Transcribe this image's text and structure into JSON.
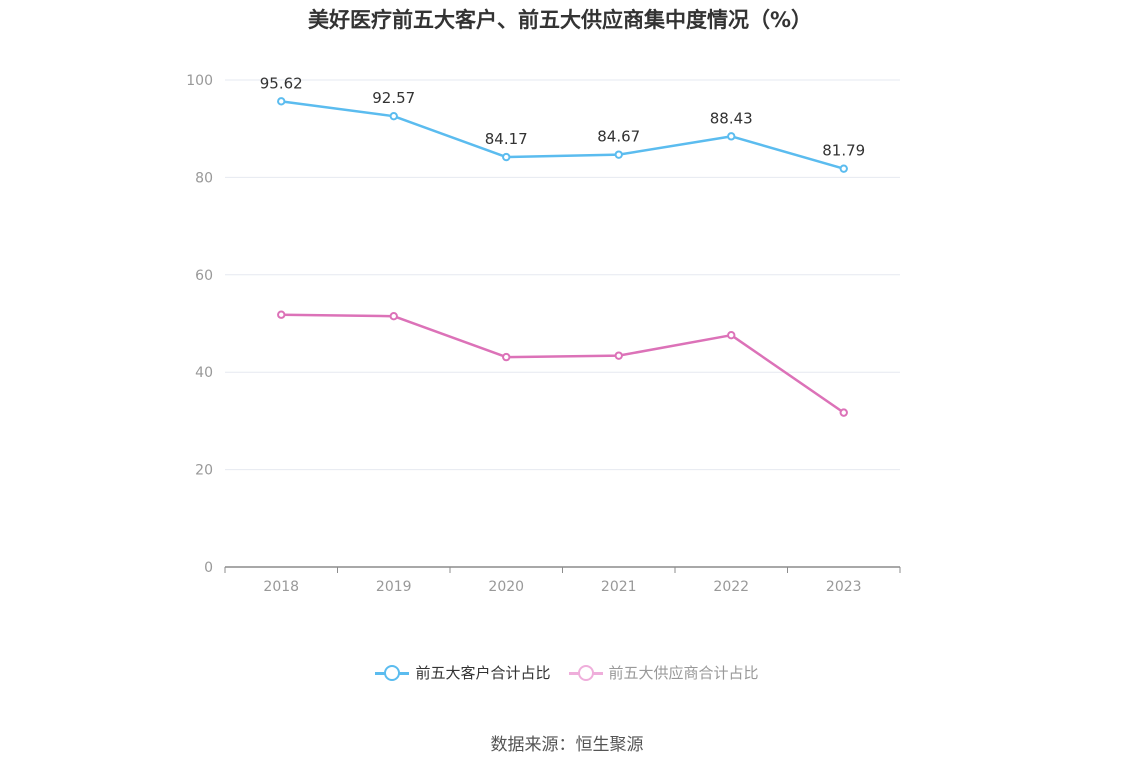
{
  "chart_data": {
    "type": "line",
    "title": "美好医疗前五大客户、前五大供应商集中度情况（%）",
    "categories": [
      "2018",
      "2019",
      "2020",
      "2021",
      "2022",
      "2023"
    ],
    "ylim": [
      0,
      100
    ],
    "yticks": [
      "0",
      "20",
      "40",
      "60",
      "80",
      "100"
    ],
    "grid": true,
    "legend_position": "bottom",
    "series": [
      {
        "name": "前五大客户合计占比",
        "color": "#5bbcef",
        "values": [
          95.62,
          92.57,
          84.17,
          84.67,
          88.43,
          81.79
        ],
        "labels": [
          "95.62",
          "92.57",
          "84.17",
          "84.67",
          "88.43",
          "81.79"
        ]
      },
      {
        "name": "前五大供应商合计占比",
        "color": "#dc72b8",
        "legend_color": "#efaedb",
        "values": [
          51.8,
          51.5,
          43.1,
          43.4,
          47.6,
          31.7
        ]
      }
    ]
  },
  "source": "数据来源：恒生聚源"
}
